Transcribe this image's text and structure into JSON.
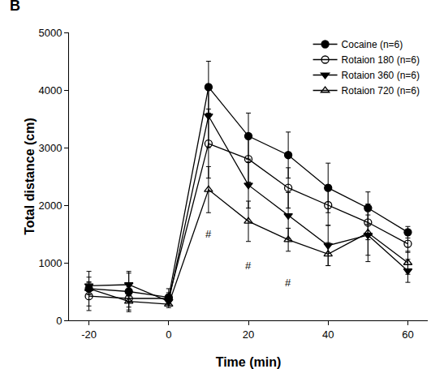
{
  "chart_data": {
    "type": "line",
    "panel_label": "B",
    "x_label": "Time (min)",
    "y_label": "Total distance (cm)",
    "x": [
      -20,
      -10,
      0,
      10,
      20,
      30,
      40,
      50,
      60
    ],
    "series": [
      {
        "name": "Cocaine (n=6)",
        "color": "#000000",
        "marker": "circle",
        "line_style": "solid",
        "values": [
          550,
          500,
          400,
          4050,
          3200,
          2870,
          2300,
          1950,
          1530
        ],
        "errors": [
          300,
          350,
          150,
          450,
          400,
          400,
          430,
          280,
          100
        ]
      },
      {
        "name": "Rotaion 180 (n=6)",
        "color": "#000000",
        "marker": "circle-open",
        "line_style": "solid",
        "values": [
          420,
          380,
          380,
          3070,
          2800,
          2300,
          2000,
          1700,
          1330
        ],
        "errors": [
          250,
          200,
          100,
          600,
          400,
          350,
          350,
          300,
          150
        ]
      },
      {
        "name": "Rotaion 360 (n=6)",
        "color": "#000000",
        "marker": "triangle-down",
        "line_style": "solid",
        "values": [
          600,
          620,
          330,
          3550,
          2350,
          1820,
          1300,
          1480,
          860
        ],
        "errors": [
          150,
          200,
          80,
          550,
          400,
          400,
          350,
          350,
          200
        ]
      },
      {
        "name": "Rotaion 720 (n=6)",
        "color": "#000000",
        "marker": "triangle-up-open",
        "line_style": "solid",
        "values": [
          550,
          330,
          280,
          2270,
          1720,
          1400,
          1150,
          1520,
          1000
        ],
        "errors": [
          100,
          100,
          60,
          400,
          350,
          200,
          200,
          500,
          200
        ]
      }
    ],
    "annotations": [
      {
        "text": "#",
        "x": 10,
        "y": 1500
      },
      {
        "text": "#",
        "x": 20,
        "y": 950
      },
      {
        "text": "#",
        "x": 30,
        "y": 650
      }
    ],
    "xlim": [
      -25,
      65
    ],
    "xticks": [
      -20,
      0,
      20,
      40,
      60
    ],
    "ylim": [
      0,
      5000
    ],
    "yticks": [
      0,
      1000,
      2000,
      3000,
      4000,
      5000
    ],
    "grid": false,
    "legend": "top right"
  }
}
